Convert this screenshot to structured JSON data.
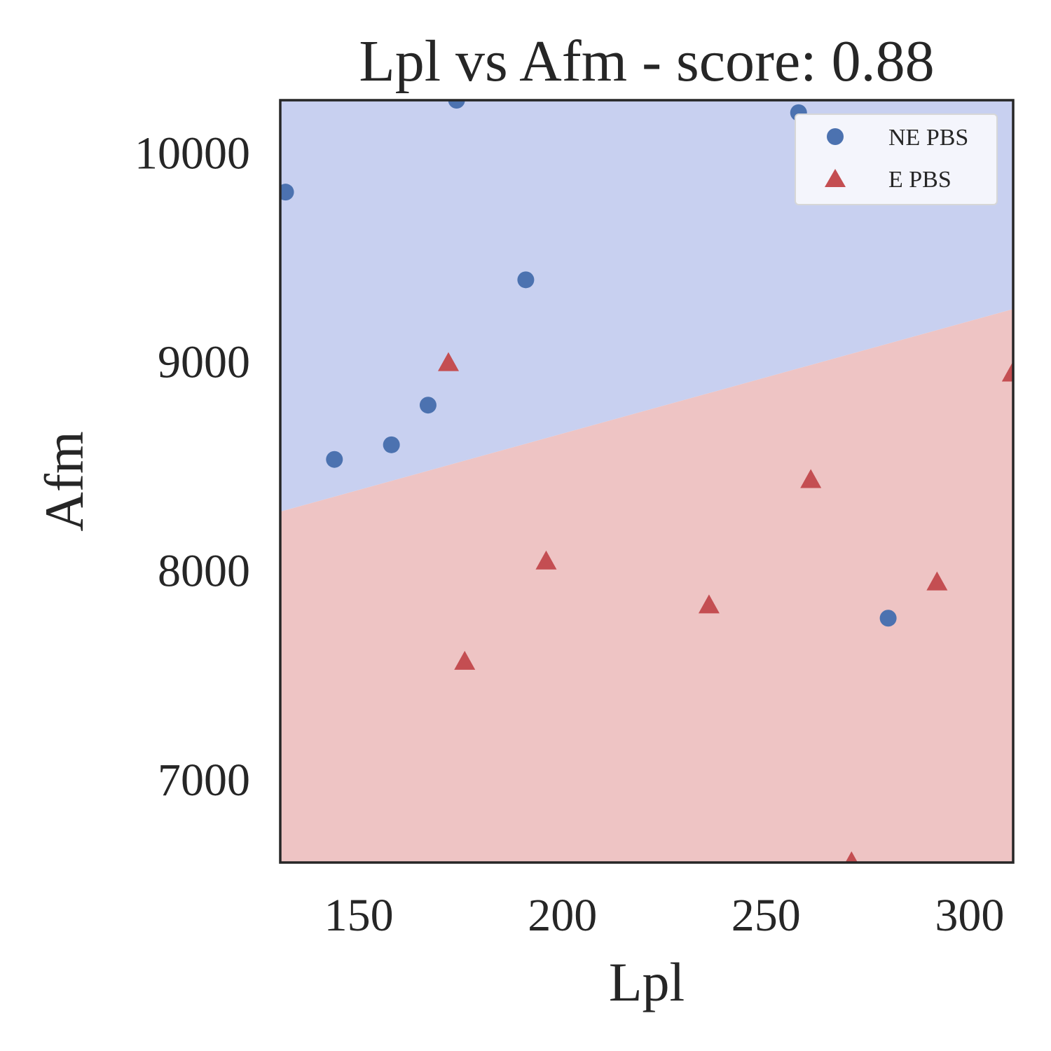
{
  "chart_data": {
    "type": "scatter",
    "title": "Lpl vs Afm - score: 0.88",
    "xlabel": "Lpl",
    "ylabel": "Afm",
    "xlim": [
      130.7,
      310.7
    ],
    "ylim": [
      6600,
      10250
    ],
    "xticks": [
      150,
      200,
      250,
      300
    ],
    "yticks": [
      7000,
      8000,
      9000,
      10000
    ],
    "grid": false,
    "legend_position": "top-right",
    "decision_boundary": {
      "description_points": [
        [
          130.7,
          8280
        ],
        [
          310.7,
          9250
        ]
      ],
      "upper_region_color": "#c8d0f0",
      "lower_region_color": "#eec4c4"
    },
    "series": [
      {
        "name": "NE PBS",
        "marker": "circle",
        "color": "#4c72b0",
        "points": [
          [
            132,
            9810
          ],
          [
            144,
            8530
          ],
          [
            158,
            8600
          ],
          [
            167,
            8790
          ],
          [
            174,
            10250
          ],
          [
            191,
            9390
          ],
          [
            258,
            10190
          ],
          [
            280,
            7770
          ]
        ]
      },
      {
        "name": "E PBS",
        "marker": "triangle",
        "color": "#c44e52",
        "points": [
          [
            172,
            8990
          ],
          [
            176,
            7560
          ],
          [
            196,
            8040
          ],
          [
            236,
            7830
          ],
          [
            261,
            8430
          ],
          [
            271,
            6600
          ],
          [
            292,
            7940
          ],
          [
            310.5,
            8940
          ]
        ]
      }
    ]
  }
}
